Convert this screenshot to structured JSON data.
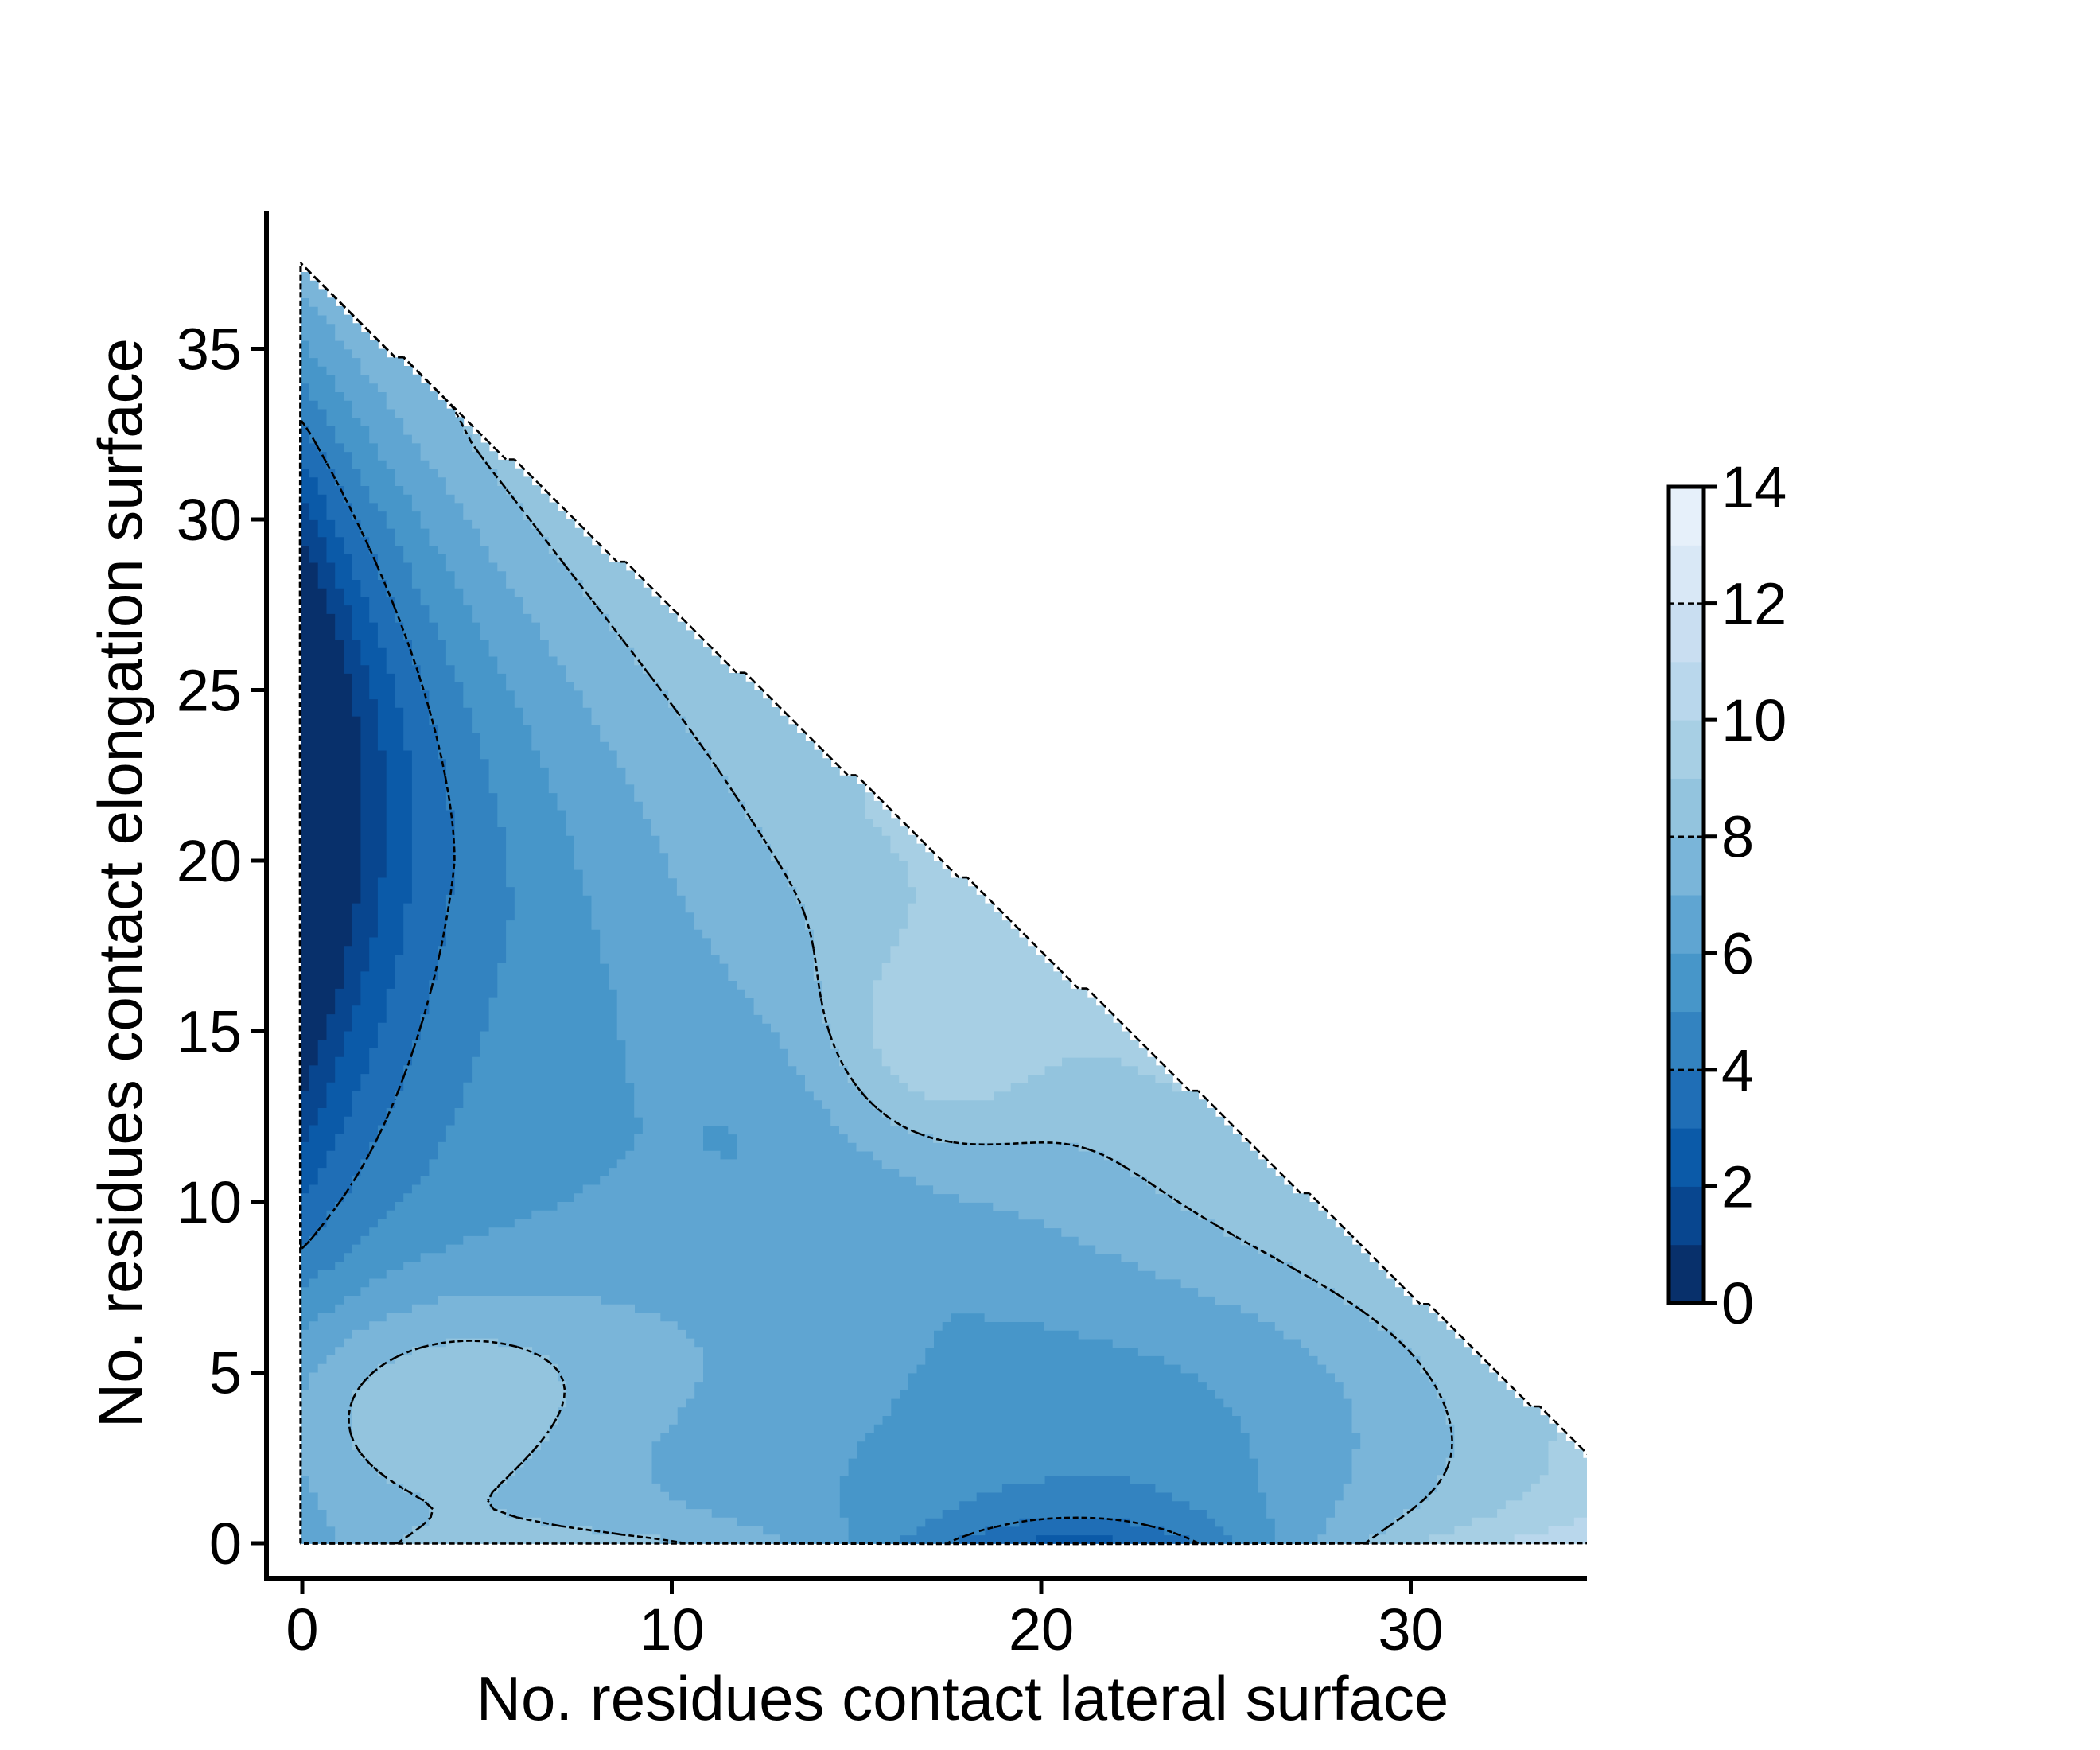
{
  "chart_data": {
    "type": "heatmap",
    "subtype": "filled-contour",
    "title": "",
    "xlabel": "No. residues contact lateral surface",
    "ylabel": "No. residues contact elongation surface",
    "xlim": [
      -1,
      35
    ],
    "ylim": [
      -1,
      39
    ],
    "xticks": [
      0,
      10,
      20,
      30
    ],
    "yticks": [
      0,
      5,
      10,
      15,
      20,
      25,
      30,
      35
    ],
    "grid": false,
    "colormap": "Blues_r",
    "colorbar": {
      "ticks": [
        0,
        2,
        4,
        6,
        8,
        10,
        12,
        14
      ],
      "range": [
        0,
        14
      ],
      "filled_levels": [
        0,
        1,
        2,
        3,
        4,
        5,
        6,
        7,
        8,
        9,
        10,
        11,
        12,
        13,
        14
      ],
      "dashed_contour_levels": [
        4,
        8,
        12
      ],
      "level_colors": [
        "#08306b",
        "#08468f",
        "#0b5aa8",
        "#1f6eb6",
        "#3383c0",
        "#4796c9",
        "#5fa5d2",
        "#7ab5d9",
        "#93c4de",
        "#a7cfe4",
        "#b9d7ec",
        "#c9def1",
        "#d9e8f6",
        "#e6f0fa",
        "#f4f8fd"
      ]
    },
    "domain": "triangular region x >= 0, y >= 0, x + y <= ~39",
    "features": [
      {
        "description": "global minimum basin",
        "x_center": 0.5,
        "y_center": 22,
        "min_value": 0.3
      },
      {
        "description": "secondary low-value basin",
        "x_center": 21,
        "y_center": 0.3,
        "min_value": 2.5
      },
      {
        "description": "high-value plateau",
        "x_center": 3,
        "y_center": 4,
        "max_value": 9.8
      },
      {
        "description": "high-value ridge",
        "x_center": 17,
        "y_center": 14.5,
        "max_value": 11.5
      }
    ]
  }
}
